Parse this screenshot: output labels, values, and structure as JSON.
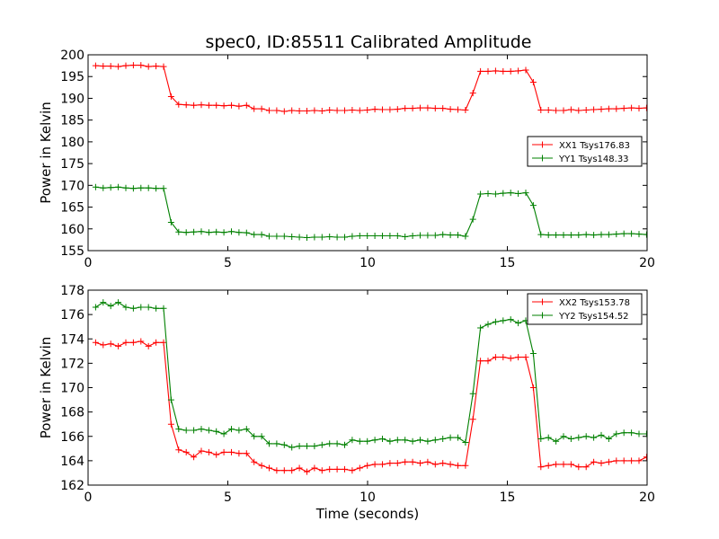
{
  "title": "spec0, ID:85511 Calibrated Amplitude",
  "colors": {
    "red": "#ff0000",
    "green": "#008000"
  },
  "chart_data": [
    {
      "type": "line",
      "xlabel": "",
      "ylabel": "Power in Kelvin",
      "xlim": [
        0,
        20
      ],
      "ylim": [
        155,
        200
      ],
      "xticks": [
        0,
        5,
        10,
        15,
        20
      ],
      "yticks": [
        155,
        160,
        165,
        170,
        175,
        180,
        185,
        190,
        195,
        200
      ],
      "grid": false,
      "legend_position": "center-right",
      "series": [
        {
          "name": "XX1 Tsys176.83",
          "color": "#ff0000",
          "marker": "+",
          "x": [
            0.27,
            0.54,
            0.81,
            1.08,
            1.35,
            1.62,
            1.89,
            2.16,
            2.43,
            2.7,
            2.97,
            3.24,
            3.51,
            3.78,
            4.05,
            4.32,
            4.59,
            4.86,
            5.13,
            5.4,
            5.67,
            5.94,
            6.21,
            6.48,
            6.75,
            7.02,
            7.29,
            7.56,
            7.83,
            8.1,
            8.37,
            8.64,
            8.91,
            9.18,
            9.45,
            9.72,
            9.99,
            10.26,
            10.53,
            10.8,
            11.07,
            11.34,
            11.61,
            11.88,
            12.15,
            12.42,
            12.69,
            12.96,
            13.23,
            13.5,
            13.77,
            14.04,
            14.31,
            14.58,
            14.85,
            15.12,
            15.39,
            15.66,
            15.93,
            16.2,
            16.47,
            16.74,
            17.01,
            17.28,
            17.55,
            17.82,
            18.09,
            18.36,
            18.63,
            18.9,
            19.17,
            19.44,
            19.71,
            19.98
          ],
          "y": [
            197.5,
            197.4,
            197.4,
            197.3,
            197.5,
            197.6,
            197.6,
            197.3,
            197.4,
            197.3,
            190.4,
            188.6,
            188.5,
            188.4,
            188.5,
            188.4,
            188.4,
            188.3,
            188.4,
            188.2,
            188.4,
            187.6,
            187.6,
            187.2,
            187.2,
            187.0,
            187.2,
            187.1,
            187.1,
            187.2,
            187.1,
            187.3,
            187.2,
            187.2,
            187.3,
            187.2,
            187.3,
            187.5,
            187.4,
            187.4,
            187.5,
            187.7,
            187.7,
            187.8,
            187.8,
            187.7,
            187.7,
            187.5,
            187.4,
            187.3,
            191.2,
            196.2,
            196.2,
            196.3,
            196.2,
            196.2,
            196.3,
            196.5,
            193.7,
            187.3,
            187.3,
            187.2,
            187.2,
            187.4,
            187.2,
            187.3,
            187.4,
            187.5,
            187.6,
            187.6,
            187.7,
            187.8,
            187.7,
            187.8
          ]
        },
        {
          "name": "YY1 Tsys148.33",
          "color": "#008000",
          "marker": "+",
          "x": [
            0.27,
            0.54,
            0.81,
            1.08,
            1.35,
            1.62,
            1.89,
            2.16,
            2.43,
            2.7,
            2.97,
            3.24,
            3.51,
            3.78,
            4.05,
            4.32,
            4.59,
            4.86,
            5.13,
            5.4,
            5.67,
            5.94,
            6.21,
            6.48,
            6.75,
            7.02,
            7.29,
            7.56,
            7.83,
            8.1,
            8.37,
            8.64,
            8.91,
            9.18,
            9.45,
            9.72,
            9.99,
            10.26,
            10.53,
            10.8,
            11.07,
            11.34,
            11.61,
            11.88,
            12.15,
            12.42,
            12.69,
            12.96,
            13.23,
            13.5,
            13.77,
            14.04,
            14.31,
            14.58,
            14.85,
            15.12,
            15.39,
            15.66,
            15.93,
            16.2,
            16.47,
            16.74,
            17.01,
            17.28,
            17.55,
            17.82,
            18.09,
            18.36,
            18.63,
            18.9,
            19.17,
            19.44,
            19.71,
            19.98
          ],
          "y": [
            169.6,
            169.4,
            169.5,
            169.6,
            169.4,
            169.3,
            169.4,
            169.4,
            169.3,
            169.3,
            161.5,
            159.3,
            159.2,
            159.3,
            159.4,
            159.2,
            159.3,
            159.2,
            159.4,
            159.2,
            159.1,
            158.7,
            158.7,
            158.3,
            158.3,
            158.3,
            158.2,
            158.1,
            158.0,
            158.1,
            158.1,
            158.2,
            158.1,
            158.1,
            158.3,
            158.4,
            158.4,
            158.4,
            158.4,
            158.4,
            158.4,
            158.2,
            158.4,
            158.5,
            158.5,
            158.5,
            158.7,
            158.6,
            158.6,
            158.3,
            162.2,
            168.0,
            168.1,
            168.0,
            168.2,
            168.3,
            168.1,
            168.3,
            165.4,
            158.7,
            158.6,
            158.6,
            158.6,
            158.6,
            158.6,
            158.7,
            158.6,
            158.7,
            158.7,
            158.8,
            158.9,
            158.9,
            158.8,
            158.7
          ]
        }
      ]
    },
    {
      "type": "line",
      "xlabel": "Time (seconds)",
      "ylabel": "Power in Kelvin",
      "xlim": [
        0,
        20
      ],
      "ylim": [
        162,
        178
      ],
      "xticks": [
        0,
        5,
        10,
        15,
        20
      ],
      "yticks": [
        162,
        164,
        166,
        168,
        170,
        172,
        174,
        176,
        178
      ],
      "grid": false,
      "legend_position": "top-right",
      "series": [
        {
          "name": "XX2 Tsys153.78",
          "color": "#ff0000",
          "marker": "+",
          "x": [
            0.27,
            0.54,
            0.81,
            1.08,
            1.35,
            1.62,
            1.89,
            2.16,
            2.43,
            2.7,
            2.97,
            3.24,
            3.51,
            3.78,
            4.05,
            4.32,
            4.59,
            4.86,
            5.13,
            5.4,
            5.67,
            5.94,
            6.21,
            6.48,
            6.75,
            7.02,
            7.29,
            7.56,
            7.83,
            8.1,
            8.37,
            8.64,
            8.91,
            9.18,
            9.45,
            9.72,
            9.99,
            10.26,
            10.53,
            10.8,
            11.07,
            11.34,
            11.61,
            11.88,
            12.15,
            12.42,
            12.69,
            12.96,
            13.23,
            13.5,
            13.77,
            14.04,
            14.31,
            14.58,
            14.85,
            15.12,
            15.39,
            15.66,
            15.93,
            16.2,
            16.47,
            16.74,
            17.01,
            17.28,
            17.55,
            17.82,
            18.09,
            18.36,
            18.63,
            18.9,
            19.17,
            19.44,
            19.71,
            19.98
          ],
          "y": [
            173.7,
            173.5,
            173.6,
            173.4,
            173.7,
            173.7,
            173.8,
            173.4,
            173.7,
            173.7,
            167.0,
            164.9,
            164.7,
            164.3,
            164.8,
            164.7,
            164.5,
            164.7,
            164.7,
            164.6,
            164.6,
            163.9,
            163.6,
            163.4,
            163.2,
            163.2,
            163.2,
            163.4,
            163.1,
            163.4,
            163.2,
            163.3,
            163.3,
            163.3,
            163.2,
            163.4,
            163.6,
            163.7,
            163.7,
            163.8,
            163.8,
            163.9,
            163.9,
            163.8,
            163.9,
            163.7,
            163.8,
            163.7,
            163.6,
            163.6,
            167.4,
            172.2,
            172.2,
            172.5,
            172.5,
            172.4,
            172.5,
            172.5,
            170.0,
            163.5,
            163.6,
            163.7,
            163.7,
            163.7,
            163.5,
            163.5,
            163.9,
            163.8,
            163.9,
            164.0,
            164.0,
            164.0,
            164.0,
            164.3
          ]
        },
        {
          "name": "YY2 Tsys154.52",
          "color": "#008000",
          "marker": "+",
          "x": [
            0.27,
            0.54,
            0.81,
            1.08,
            1.35,
            1.62,
            1.89,
            2.16,
            2.43,
            2.7,
            2.97,
            3.24,
            3.51,
            3.78,
            4.05,
            4.32,
            4.59,
            4.86,
            5.13,
            5.4,
            5.67,
            5.94,
            6.21,
            6.48,
            6.75,
            7.02,
            7.29,
            7.56,
            7.83,
            8.1,
            8.37,
            8.64,
            8.91,
            9.18,
            9.45,
            9.72,
            9.99,
            10.26,
            10.53,
            10.8,
            11.07,
            11.34,
            11.61,
            11.88,
            12.15,
            12.42,
            12.69,
            12.96,
            13.23,
            13.5,
            13.77,
            14.04,
            14.31,
            14.58,
            14.85,
            15.12,
            15.39,
            15.66,
            15.93,
            16.2,
            16.47,
            16.74,
            17.01,
            17.28,
            17.55,
            17.82,
            18.09,
            18.36,
            18.63,
            18.9,
            19.17,
            19.44,
            19.71,
            19.98
          ],
          "y": [
            176.6,
            177.0,
            176.7,
            177.0,
            176.6,
            176.5,
            176.6,
            176.6,
            176.5,
            176.5,
            169.0,
            166.6,
            166.5,
            166.5,
            166.6,
            166.5,
            166.4,
            166.2,
            166.6,
            166.5,
            166.6,
            166.0,
            166.0,
            165.4,
            165.4,
            165.3,
            165.1,
            165.2,
            165.2,
            165.2,
            165.3,
            165.4,
            165.4,
            165.3,
            165.7,
            165.6,
            165.6,
            165.7,
            165.8,
            165.6,
            165.7,
            165.7,
            165.6,
            165.7,
            165.6,
            165.7,
            165.8,
            165.9,
            165.9,
            165.5,
            169.5,
            174.9,
            175.2,
            175.4,
            175.5,
            175.6,
            175.3,
            175.5,
            172.8,
            165.8,
            165.9,
            165.6,
            166.0,
            165.8,
            165.9,
            166.0,
            165.9,
            166.1,
            165.8,
            166.2,
            166.3,
            166.3,
            166.2,
            166.2
          ]
        }
      ]
    }
  ]
}
